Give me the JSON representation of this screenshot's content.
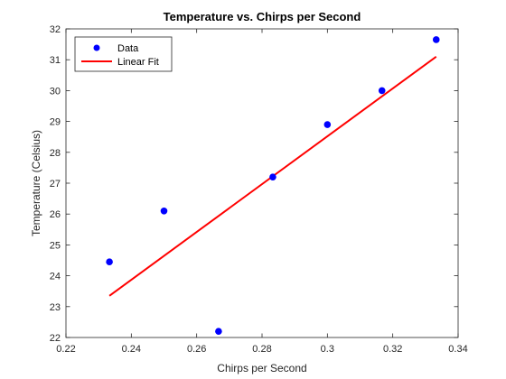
{
  "chart_data": {
    "type": "scatter",
    "title": "Temperature vs. Chirps per Second",
    "xlabel": "Chirps per Second",
    "ylabel": "Temperature (Celsius)",
    "xlim": [
      0.22,
      0.34
    ],
    "ylim": [
      22,
      32
    ],
    "xticks": [
      "0.22",
      "0.24",
      "0.26",
      "0.28",
      "0.3",
      "0.32",
      "0.34"
    ],
    "yticks": [
      "22",
      "23",
      "24",
      "25",
      "26",
      "27",
      "28",
      "29",
      "30",
      "31",
      "32"
    ],
    "grid": false,
    "legend_position": "top-left",
    "series": [
      {
        "name": "Data",
        "kind": "markers",
        "color": "#0000ff",
        "x": [
          0.2333,
          0.25,
          0.2667,
          0.2833,
          0.3,
          0.3167,
          0.3333
        ],
        "y": [
          24.45,
          26.1,
          22.2,
          27.2,
          28.9,
          30.0,
          31.65
        ]
      },
      {
        "name": "Linear Fit",
        "kind": "line",
        "color": "#ff0000",
        "x": [
          0.2333,
          0.3333
        ],
        "y": [
          23.35,
          31.1
        ]
      }
    ]
  }
}
